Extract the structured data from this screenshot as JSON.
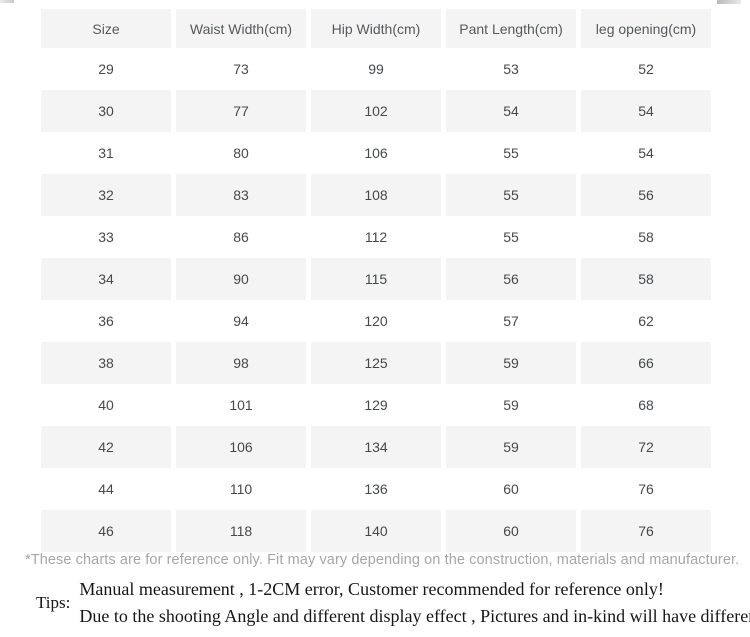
{
  "table": {
    "columns": [
      "Size",
      "Waist Width(cm)",
      "Hip Width(cm)",
      "Pant Length(cm)",
      "leg opening(cm)"
    ],
    "rows": [
      [
        "29",
        "73",
        "99",
        "53",
        "52"
      ],
      [
        "30",
        "77",
        "102",
        "54",
        "54"
      ],
      [
        "31",
        "80",
        "106",
        "55",
        "54"
      ],
      [
        "32",
        "83",
        "108",
        "55",
        "56"
      ],
      [
        "33",
        "86",
        "112",
        "55",
        "58"
      ],
      [
        "34",
        "90",
        "115",
        "56",
        "58"
      ],
      [
        "36",
        "94",
        "120",
        "57",
        "62"
      ],
      [
        "38",
        "98",
        "125",
        "59",
        "66"
      ],
      [
        "40",
        "101",
        "129",
        "59",
        "68"
      ],
      [
        "42",
        "106",
        "134",
        "59",
        "72"
      ],
      [
        "44",
        "110",
        "136",
        "60",
        "76"
      ],
      [
        "46",
        "118",
        "140",
        "60",
        "76"
      ]
    ]
  },
  "footnote": "*These charts are for reference only. Fit may vary depending on the construction, materials and manufacturer.",
  "tips": {
    "label": "Tips:",
    "lines": [
      "Manual measurement , 1-2CM error, Customer recommended for reference only!",
      "Due to the shooting Angle and different display effect , Pictures and in-kind will have different degrees off color"
    ]
  },
  "colors": {
    "row_stripe": "#f4f4f4",
    "header_text": "#55595c",
    "cell_text": "#46494c",
    "footnote_text": "#a4a7a9",
    "tips_text": "#161616",
    "background": "#ffffff"
  }
}
